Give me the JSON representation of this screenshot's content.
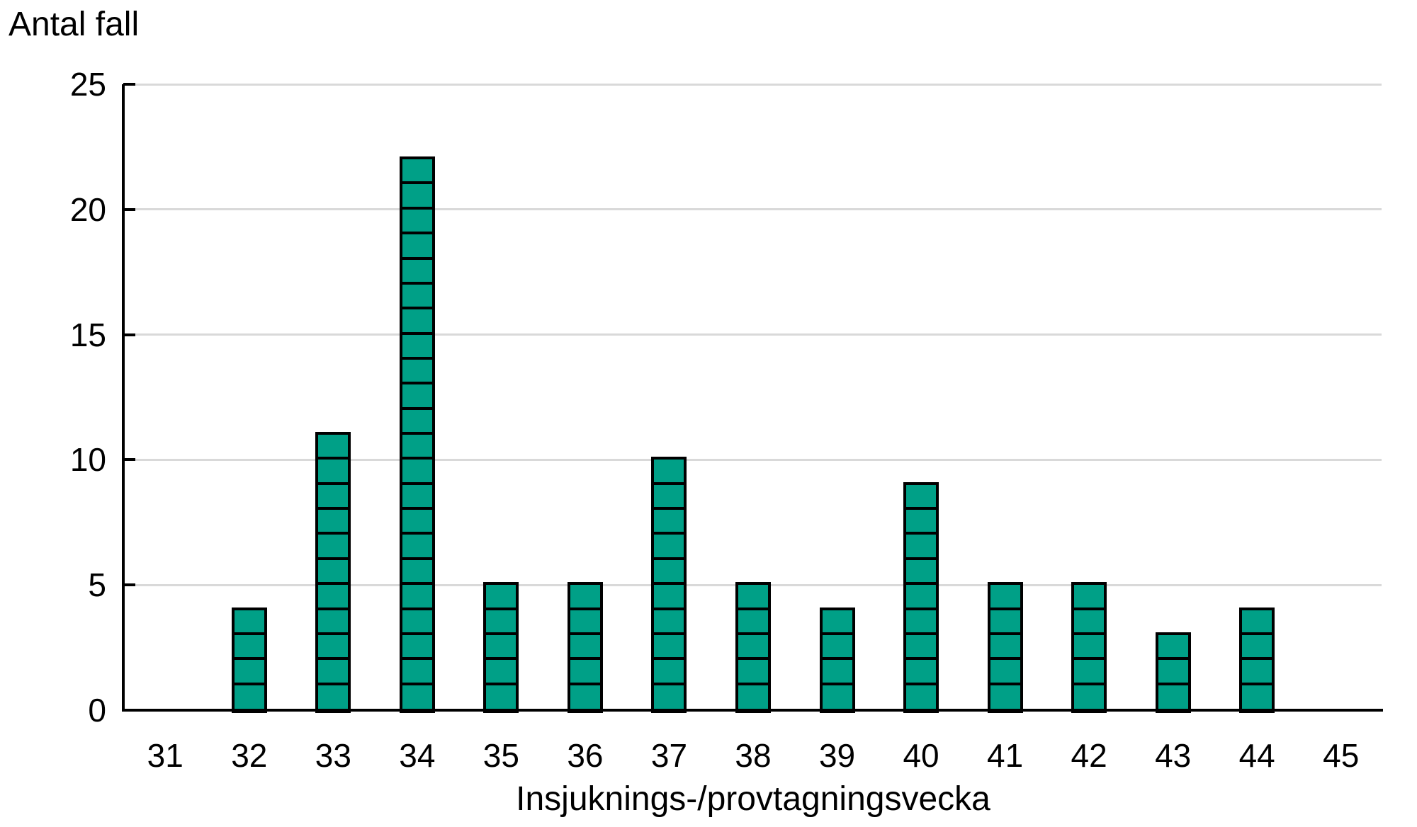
{
  "chart_data": {
    "type": "bar",
    "title": "",
    "ylabel": "Antal fall",
    "xlabel": "Insjuknings-/provtagningsvecka",
    "categories": [
      "31",
      "32",
      "33",
      "34",
      "35",
      "36",
      "37",
      "38",
      "39",
      "40",
      "41",
      "42",
      "43",
      "44",
      "45"
    ],
    "values": [
      0,
      4,
      11,
      22,
      5,
      5,
      10,
      5,
      4,
      9,
      5,
      5,
      3,
      4,
      0
    ],
    "ylim": [
      0,
      25
    ],
    "yticks": [
      0,
      5,
      10,
      15,
      20,
      25
    ],
    "grid": "horizontal-light",
    "legend": "none",
    "bar_segmented_per_unit": true,
    "colors": {
      "bar_fill": "#00A087",
      "bar_border": "#000000",
      "gridline": "#D9D9D9",
      "axis": "#000000",
      "text": "#000000",
      "background": "#FFFFFF"
    }
  }
}
